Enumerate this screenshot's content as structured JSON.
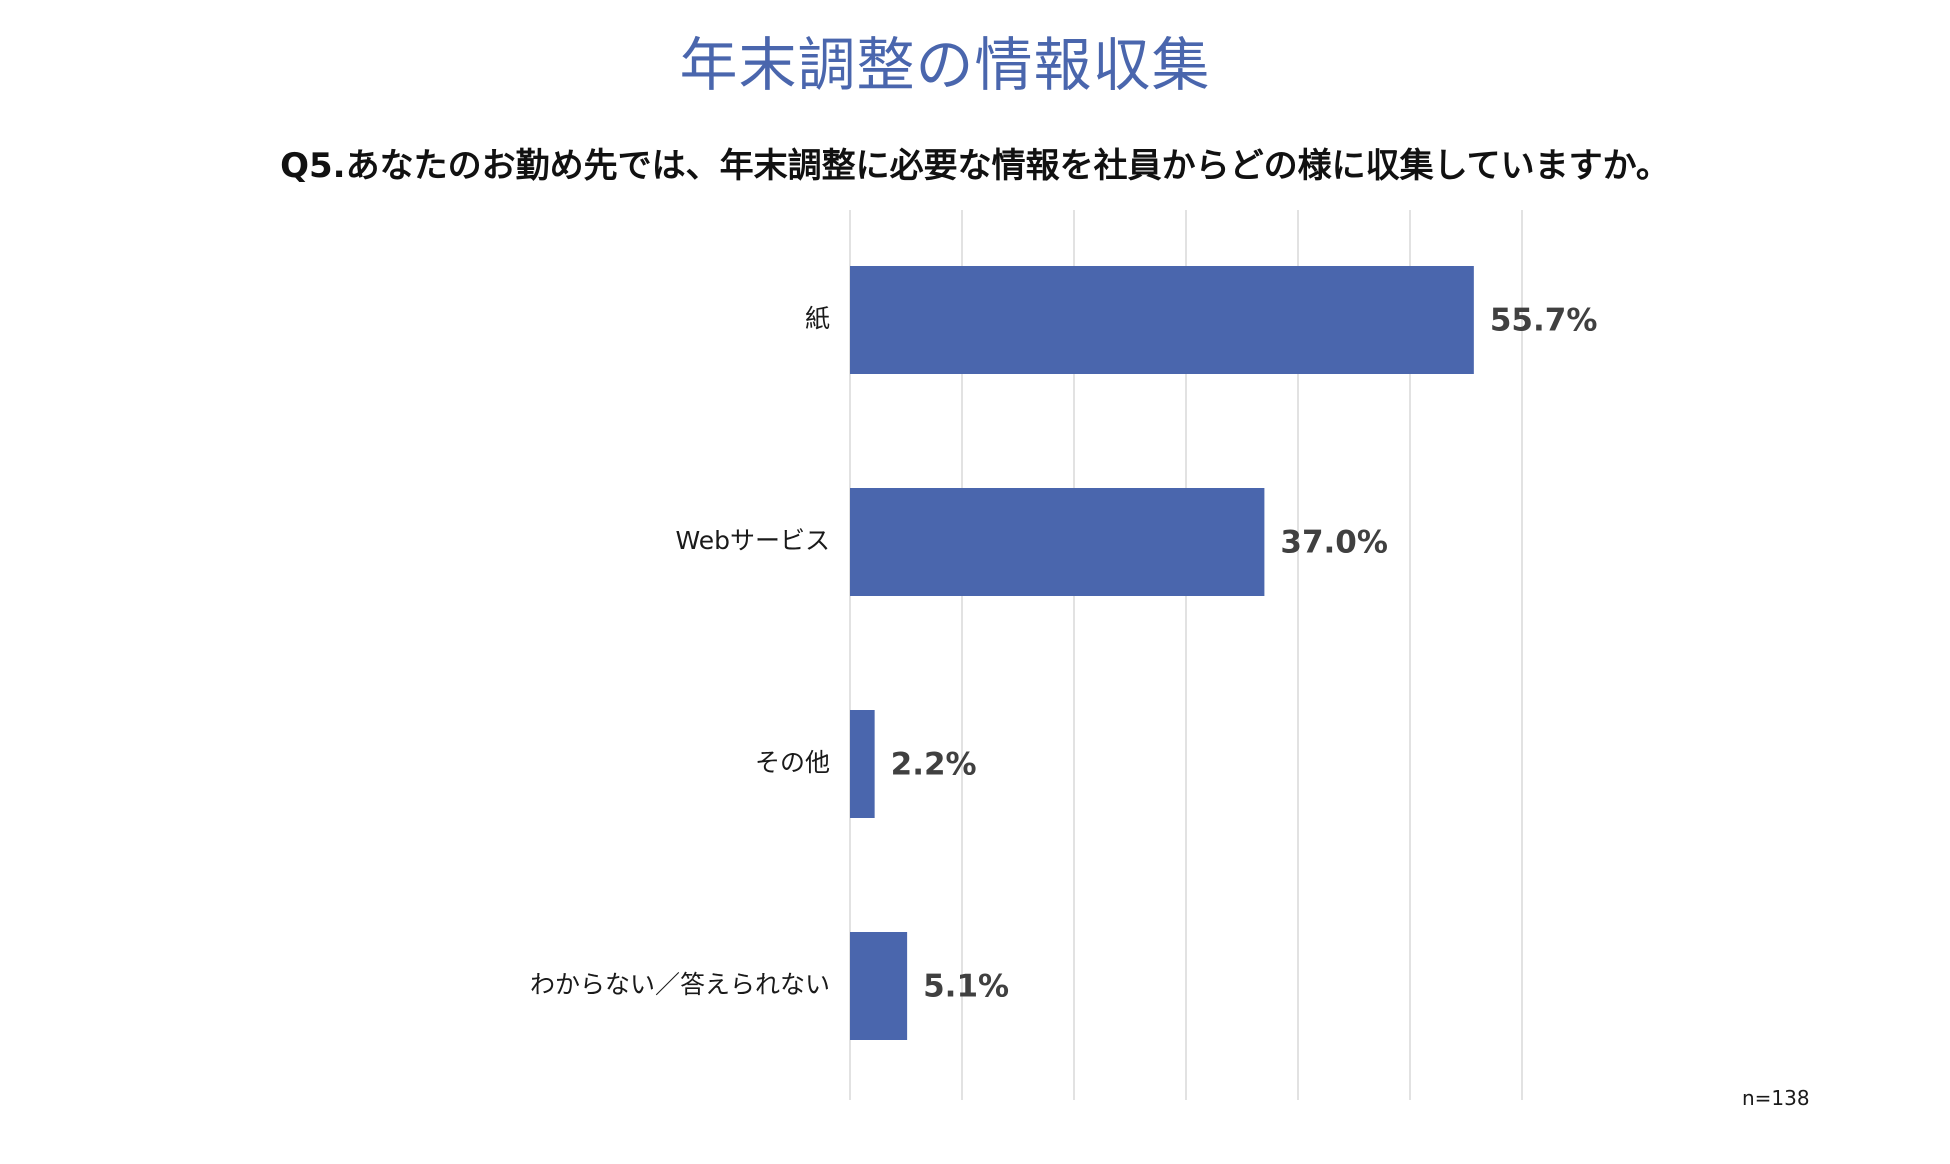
{
  "header": {
    "title": "年末調整の情報収集",
    "question": "Q5.あなたのお勤め先では、年末調整に必要な情報を社員からどの様に収集していますか。"
  },
  "footer": {
    "sample_size": "n=138"
  },
  "colors": {
    "bar": "#4a66ad",
    "title": "#4a66ad",
    "grid": "#d9d9d9"
  },
  "chart_data": {
    "type": "bar",
    "orientation": "horizontal",
    "categories": [
      "紙",
      "Webサービス",
      "その他",
      "わからない／答えられない"
    ],
    "values": [
      55.7,
      37.0,
      2.2,
      5.1
    ],
    "value_labels": [
      "55.7%",
      "37.0%",
      "2.2%",
      "5.1%"
    ],
    "title": "年末調整の情報収集",
    "xlabel": "",
    "ylabel": "",
    "xlim": [
      0,
      60
    ],
    "unit": "%",
    "grid": true,
    "legend": "none"
  }
}
